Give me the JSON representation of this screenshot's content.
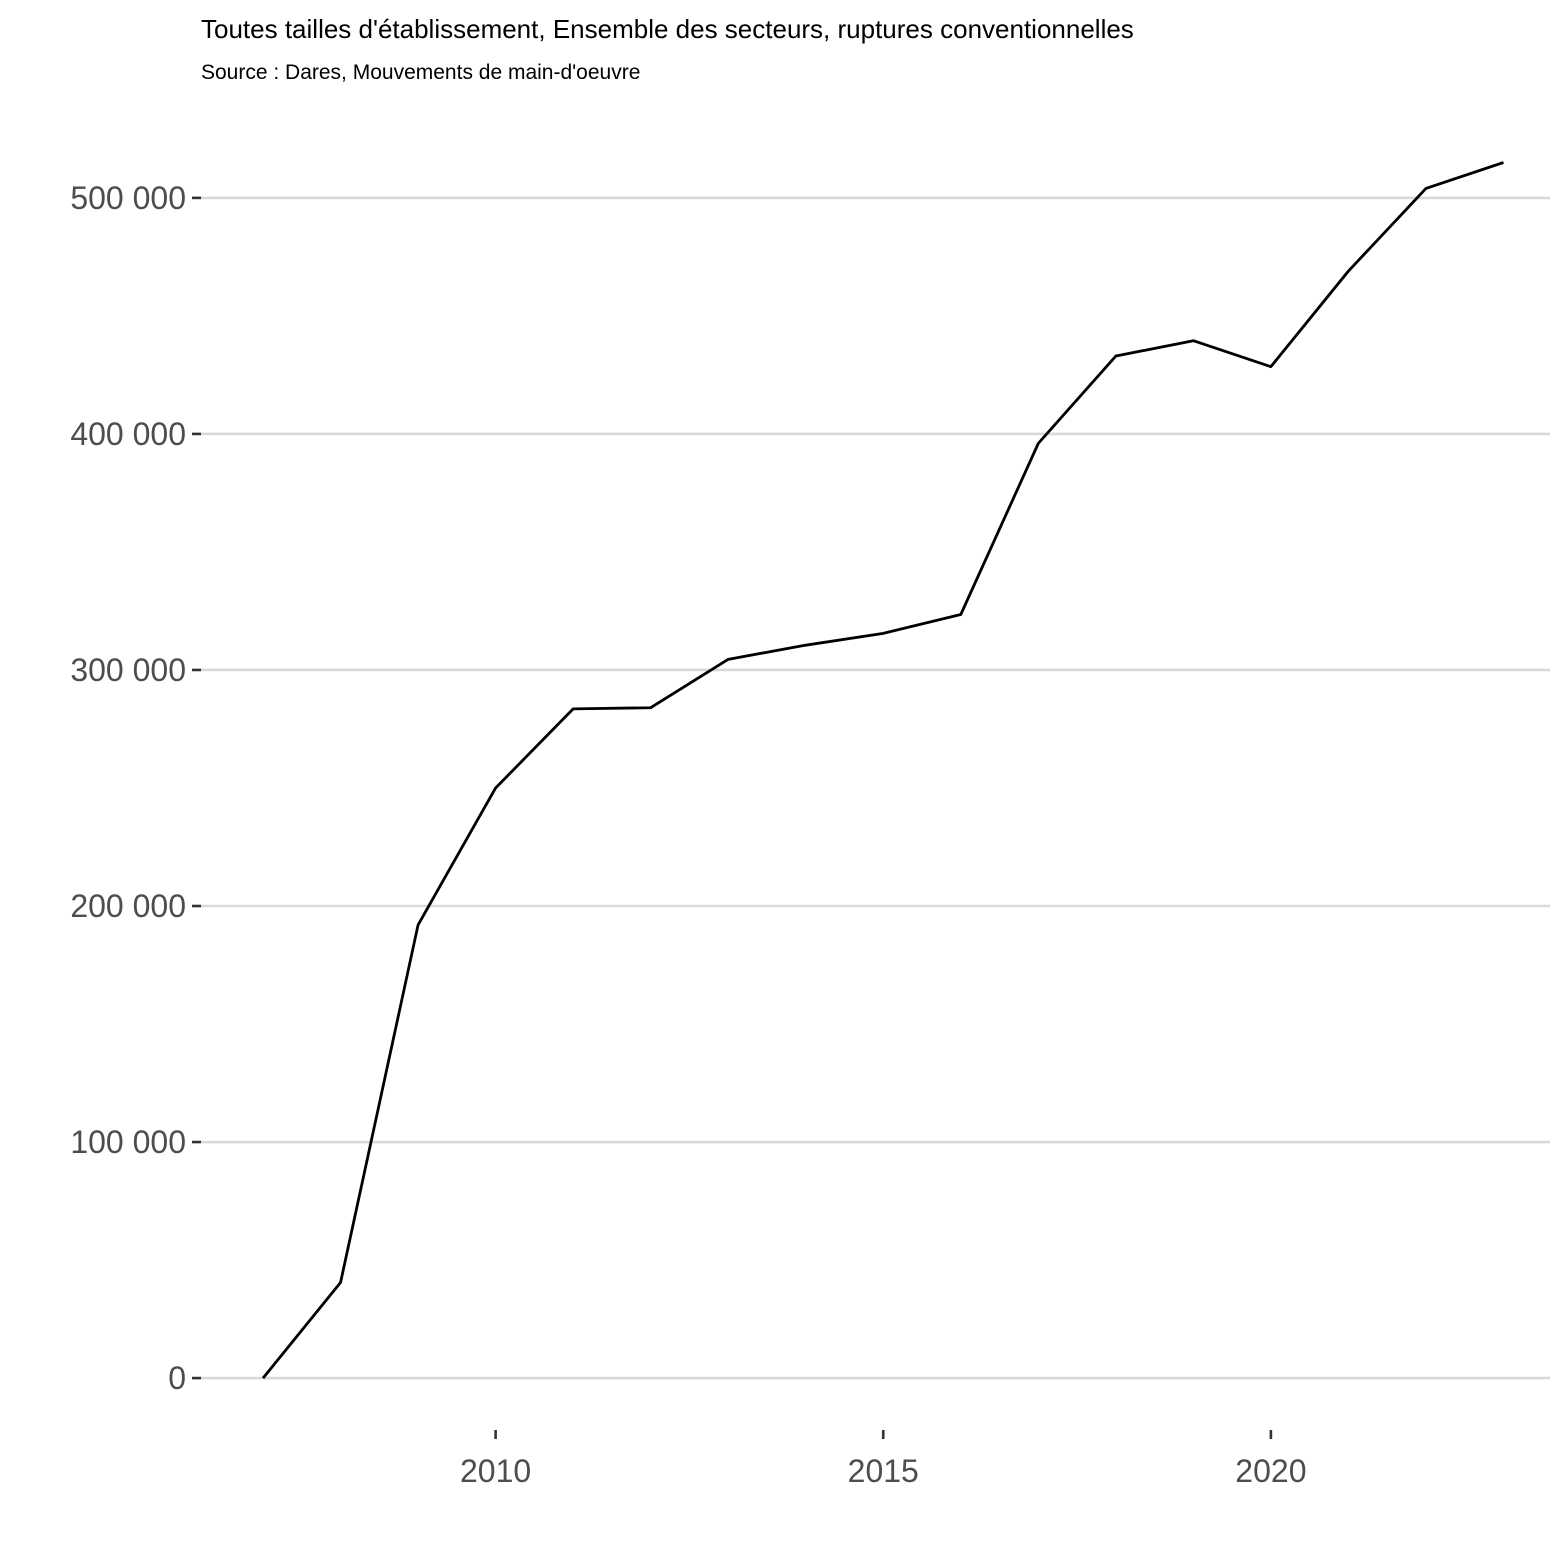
{
  "chart_data": {
    "type": "line",
    "title": "Toutes tailles d'établissement, Ensemble des secteurs, ruptures conventionnelles",
    "subtitle": "Source : Dares, Mouvements de main-d'oeuvre",
    "xlabel": "",
    "ylabel": "",
    "xlim": [
      2006.2,
      2023.6
    ],
    "ylim": [
      -22000,
      533000
    ],
    "grid": {
      "horizontal": true,
      "vertical": false
    },
    "legend": "none",
    "x_ticks": [
      {
        "value": 2010,
        "label": "2010"
      },
      {
        "value": 2015,
        "label": "2015"
      },
      {
        "value": 2020,
        "label": "2020"
      }
    ],
    "y_ticks": [
      {
        "value": 0,
        "label": "0"
      },
      {
        "value": 100000,
        "label": "100 000"
      },
      {
        "value": 200000,
        "label": "200 000"
      },
      {
        "value": 300000,
        "label": "300 000"
      },
      {
        "value": 400000,
        "label": "400 000"
      },
      {
        "value": 500000,
        "label": "500 000"
      }
    ],
    "series": [
      {
        "color": "#000000",
        "x": [
          2007,
          2008,
          2009,
          2010,
          2011,
          2012,
          2013,
          2014,
          2015,
          2016,
          2017,
          2018,
          2019,
          2020,
          2021,
          2022,
          2023
        ],
        "y": [
          0,
          40500,
          192000,
          250000,
          283500,
          284000,
          304500,
          310500,
          315500,
          323500,
          396000,
          433000,
          439500,
          428500,
          469000,
          504000,
          515000
        ]
      }
    ]
  }
}
